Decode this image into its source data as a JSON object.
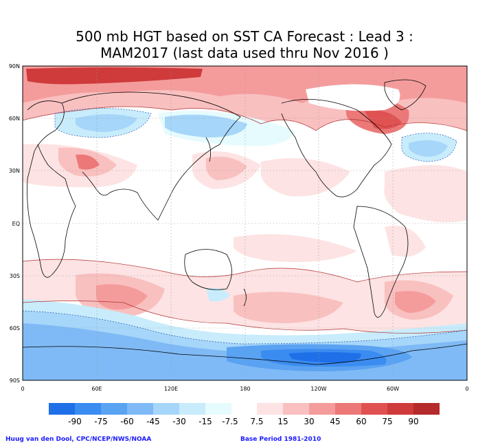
{
  "title": {
    "line1": "500 mb HGT based on SST CA Forecast : Lead 3 :",
    "line2": "MAM2017 (last data used thru Nov 2016 )"
  },
  "axes": {
    "lat_labels": [
      "90N",
      "60N",
      "30N",
      "EQ",
      "30S",
      "60S",
      "90S"
    ],
    "lon_labels": [
      "0",
      "60E",
      "120E",
      "180",
      "120W",
      "60W",
      "0"
    ]
  },
  "colorbar": {
    "labels": [
      "-90",
      "-75",
      "-60",
      "-45",
      "-30",
      "-15",
      "-7.5",
      "7.5",
      "15",
      "30",
      "45",
      "60",
      "75",
      "90"
    ],
    "negative_colors": [
      "#1f6fe8",
      "#3b8cf0",
      "#5aa2f2",
      "#7fbaf6",
      "#a6d6f9",
      "#c8ecfb",
      "#e6fbfd"
    ],
    "positive_colors": [
      "#fde3e3",
      "#f9c0c0",
      "#f49c9c",
      "#ec7878",
      "#e05252",
      "#cf3a3a",
      "#b52a2a"
    ]
  },
  "footer": {
    "credit": "Huug van den Dool, CPC/NCEP/NWS/NOAA",
    "base_period": "Base Period 1981-2010"
  }
}
